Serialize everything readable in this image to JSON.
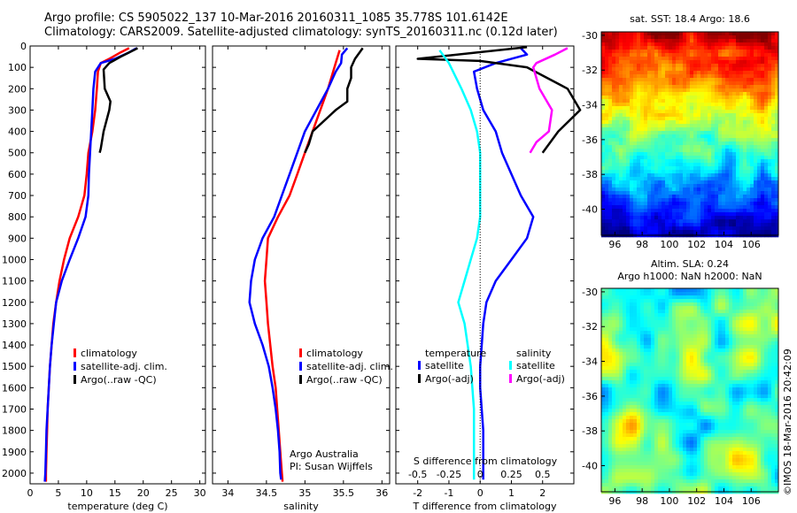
{
  "titles": {
    "line1": "Argo profile: CS 5905022_137 10-Mar-2016 20160311_1085 35.778S 101.6142E",
    "line2": "Climatology: CARS2009. Satellite-adjusted climatology: synTS_20160311.nc (0.12d later)"
  },
  "colors": {
    "climatology": "#ff0000",
    "satellite": "#0000ff",
    "argo": "#000000",
    "sal_satellite": "#00ffff",
    "sal_argo": "#ff00ff"
  },
  "chart_data": [
    {
      "type": "line",
      "id": "temperature",
      "xlabel": "temperature (deg C)",
      "xlim": [
        0,
        31
      ],
      "ylim": [
        0,
        2050
      ],
      "xticks": [
        0,
        5,
        10,
        15,
        20,
        25,
        30
      ],
      "yticks": [
        0,
        100,
        200,
        300,
        400,
        500,
        600,
        700,
        800,
        900,
        1000,
        1100,
        1200,
        1300,
        1400,
        1500,
        1600,
        1700,
        1800,
        1900,
        2000
      ],
      "legend": [
        "climatology",
        "satellite-adj. clim.",
        "Argo(..raw -QC)"
      ],
      "series": [
        {
          "name": "climatology",
          "color": "climatology",
          "points": [
            [
              17.5,
              10
            ],
            [
              16,
              30
            ],
            [
              14,
              60
            ],
            [
              12.5,
              80
            ],
            [
              12,
              120
            ],
            [
              11.8,
              200
            ],
            [
              11.5,
              300
            ],
            [
              11,
              400
            ],
            [
              10.3,
              500
            ],
            [
              10,
              600
            ],
            [
              9.6,
              700
            ],
            [
              8.5,
              800
            ],
            [
              7,
              900
            ],
            [
              6,
              1000
            ],
            [
              5.2,
              1100
            ],
            [
              4.6,
              1200
            ],
            [
              4.1,
              1300
            ],
            [
              3.8,
              1400
            ],
            [
              3.5,
              1500
            ],
            [
              3.3,
              1600
            ],
            [
              3.1,
              1700
            ],
            [
              3,
              1800
            ],
            [
              2.9,
              1900
            ],
            [
              2.8,
              2000
            ],
            [
              2.8,
              2040
            ]
          ]
        },
        {
          "name": "satellite-adj. clim.",
          "color": "satellite",
          "points": [
            [
              18.8,
              10
            ],
            [
              17.5,
              30
            ],
            [
              15,
              60
            ],
            [
              12.5,
              80
            ],
            [
              11.5,
              120
            ],
            [
              11.2,
              200
            ],
            [
              11,
              300
            ],
            [
              10.8,
              400
            ],
            [
              10.6,
              500
            ],
            [
              10.4,
              600
            ],
            [
              10.3,
              700
            ],
            [
              9.8,
              800
            ],
            [
              8.5,
              900
            ],
            [
              7,
              1000
            ],
            [
              5.6,
              1100
            ],
            [
              4.6,
              1200
            ],
            [
              4.2,
              1300
            ],
            [
              3.8,
              1400
            ],
            [
              3.5,
              1500
            ],
            [
              3.3,
              1600
            ],
            [
              3.1,
              1700
            ],
            [
              2.9,
              1800
            ],
            [
              2.8,
              1900
            ],
            [
              2.7,
              2000
            ],
            [
              2.6,
              2040
            ]
          ]
        },
        {
          "name": "Argo(..raw -QC)",
          "color": "argo",
          "points": [
            [
              19,
              10
            ],
            [
              18.3,
              20
            ],
            [
              16,
              50
            ],
            [
              14,
              80
            ],
            [
              13,
              110
            ],
            [
              13.2,
              200
            ],
            [
              14.2,
              260
            ],
            [
              14,
              300
            ],
            [
              13.5,
              350
            ],
            [
              13,
              400
            ],
            [
              12.5,
              480
            ],
            [
              12.3,
              500
            ]
          ]
        }
      ]
    },
    {
      "type": "line",
      "id": "salinity",
      "xlabel": "salinity",
      "xlim": [
        33.8,
        36.1
      ],
      "ylim": [
        0,
        2050
      ],
      "xticks": [
        34,
        34.5,
        35,
        35.5,
        36
      ],
      "legend": [
        "climatology",
        "satellite-adj. clim.",
        "Argo(..raw -QC)"
      ],
      "annotation": [
        "Argo Australia",
        "PI: Susan Wijffels"
      ],
      "series": [
        {
          "name": "climatology",
          "color": "climatology",
          "points": [
            [
              35.45,
              20
            ],
            [
              35.4,
              80
            ],
            [
              35.3,
              200
            ],
            [
              35.2,
              300
            ],
            [
              35.1,
              400
            ],
            [
              35.0,
              500
            ],
            [
              34.9,
              600
            ],
            [
              34.8,
              700
            ],
            [
              34.65,
              800
            ],
            [
              34.52,
              900
            ],
            [
              34.5,
              1000
            ],
            [
              34.48,
              1100
            ],
            [
              34.5,
              1200
            ],
            [
              34.52,
              1300
            ],
            [
              34.55,
              1400
            ],
            [
              34.58,
              1500
            ],
            [
              34.62,
              1600
            ],
            [
              34.64,
              1700
            ],
            [
              34.66,
              1800
            ],
            [
              34.68,
              1900
            ],
            [
              34.7,
              2000
            ],
            [
              34.71,
              2040
            ]
          ]
        },
        {
          "name": "satellite-adj. clim.",
          "color": "satellite",
          "points": [
            [
              35.55,
              10
            ],
            [
              35.48,
              40
            ],
            [
              35.47,
              80
            ],
            [
              35.4,
              120
            ],
            [
              35.3,
              200
            ],
            [
              35.15,
              300
            ],
            [
              35.0,
              400
            ],
            [
              34.9,
              500
            ],
            [
              34.8,
              600
            ],
            [
              34.7,
              700
            ],
            [
              34.6,
              800
            ],
            [
              34.45,
              900
            ],
            [
              34.35,
              1000
            ],
            [
              34.3,
              1100
            ],
            [
              34.28,
              1200
            ],
            [
              34.35,
              1300
            ],
            [
              34.45,
              1400
            ],
            [
              34.53,
              1500
            ],
            [
              34.58,
              1600
            ],
            [
              34.62,
              1700
            ],
            [
              34.65,
              1800
            ],
            [
              34.67,
              1900
            ],
            [
              34.68,
              2000
            ],
            [
              34.69,
              2030
            ]
          ]
        },
        {
          "name": "Argo(..raw -QC)",
          "color": "argo",
          "points": [
            [
              35.75,
              10
            ],
            [
              35.65,
              60
            ],
            [
              35.6,
              100
            ],
            [
              35.6,
              150
            ],
            [
              35.55,
              200
            ],
            [
              35.55,
              260
            ],
            [
              35.4,
              300
            ],
            [
              35.25,
              350
            ],
            [
              35.1,
              400
            ],
            [
              35.05,
              460
            ],
            [
              35.0,
              500
            ]
          ]
        }
      ]
    },
    {
      "type": "line",
      "id": "difference",
      "xlabel": "T difference from climatology",
      "x2label": "S difference from climatology",
      "xlim": [
        -2.7,
        3
      ],
      "ylim": [
        0,
        2050
      ],
      "xticks": [
        -2,
        -1,
        0,
        1,
        2
      ],
      "x2ticks": [
        "-0.5",
        "-0.25",
        "0",
        "0.25",
        "0.5"
      ],
      "x2tick_values": [
        -2,
        -1,
        0,
        1,
        2
      ],
      "legend_headers": [
        "temperature",
        "salinity"
      ],
      "legend": [
        "satellite",
        "Argo(-adj)",
        "satellite",
        "Argo(-adj)"
      ],
      "series": [
        {
          "name": "satellite",
          "group": "temperature",
          "color": "satellite",
          "points": [
            [
              1.3,
              10
            ],
            [
              1.5,
              40
            ],
            [
              0.5,
              80
            ],
            [
              -0.2,
              120
            ],
            [
              -0.1,
              200
            ],
            [
              0.1,
              300
            ],
            [
              0.5,
              400
            ],
            [
              0.7,
              500
            ],
            [
              1,
              600
            ],
            [
              1.3,
              700
            ],
            [
              1.7,
              800
            ],
            [
              1.5,
              900
            ],
            [
              1.0,
              1000
            ],
            [
              0.5,
              1100
            ],
            [
              0.2,
              1200
            ],
            [
              0.1,
              1300
            ],
            [
              0.05,
              1400
            ],
            [
              0,
              1500
            ],
            [
              0,
              1600
            ],
            [
              0.1,
              1800
            ],
            [
              0.1,
              1900
            ],
            [
              0.1,
              2000
            ],
            [
              0.1,
              2030
            ]
          ]
        },
        {
          "name": "Argo(-adj)",
          "group": "temperature",
          "color": "argo",
          "points": [
            [
              1.5,
              5
            ],
            [
              -2,
              60
            ],
            [
              0,
              70
            ],
            [
              1.5,
              100
            ],
            [
              2.8,
              200
            ],
            [
              3.2,
              300
            ],
            [
              2.5,
              400
            ],
            [
              2,
              500
            ]
          ]
        },
        {
          "name": "satellite",
          "group": "salinity",
          "color": "sal_satellite",
          "points": [
            [
              -1.3,
              20
            ],
            [
              -1.0,
              80
            ],
            [
              -0.6,
              200
            ],
            [
              -0.3,
              300
            ],
            [
              -0.1,
              400
            ],
            [
              0,
              500
            ],
            [
              0,
              600
            ],
            [
              0,
              700
            ],
            [
              0,
              800
            ],
            [
              -0.1,
              900
            ],
            [
              -0.3,
              1000
            ],
            [
              -0.5,
              1100
            ],
            [
              -0.7,
              1200
            ],
            [
              -0.5,
              1300
            ],
            [
              -0.4,
              1400
            ],
            [
              -0.3,
              1500
            ],
            [
              -0.25,
              1600
            ],
            [
              -0.2,
              1700
            ],
            [
              -0.2,
              1800
            ],
            [
              -0.2,
              1900
            ],
            [
              -0.2,
              2000
            ],
            [
              -0.2,
              2030
            ]
          ]
        },
        {
          "name": "Argo(-adj)",
          "group": "salinity",
          "color": "sal_argo",
          "points": [
            [
              2.8,
              10
            ],
            [
              2.4,
              40
            ],
            [
              1.8,
              80
            ],
            [
              1.7,
              100
            ],
            [
              1.9,
              200
            ],
            [
              2.3,
              300
            ],
            [
              2.2,
              400
            ],
            [
              1.8,
              450
            ],
            [
              1.6,
              500
            ]
          ]
        }
      ]
    },
    {
      "type": "heatmap",
      "id": "sst_map",
      "title": "sat. SST: 18.4 Argo: 18.6",
      "xticks": [
        "96",
        "98",
        "100",
        "102",
        "104",
        "106"
      ],
      "yticks": [
        "-30",
        "-32",
        "-34",
        "-36",
        "-38",
        "-40"
      ],
      "xlim": [
        95,
        108
      ],
      "ylim": [
        -41.5,
        -29.8
      ]
    },
    {
      "type": "heatmap",
      "id": "sla_map",
      "title": "Altim. SLA: 0.24",
      "subtitle": "Argo h1000: NaN h2000: NaN",
      "xticks": [
        "96",
        "98",
        "100",
        "102",
        "104",
        "106"
      ],
      "yticks": [
        "-30",
        "-32",
        "-34",
        "-36",
        "-38",
        "-40"
      ],
      "xlim": [
        95,
        108
      ],
      "ylim": [
        -41.5,
        -29.8
      ]
    }
  ],
  "credit": "©IMOS 18-Mar-2016 20:42:09"
}
